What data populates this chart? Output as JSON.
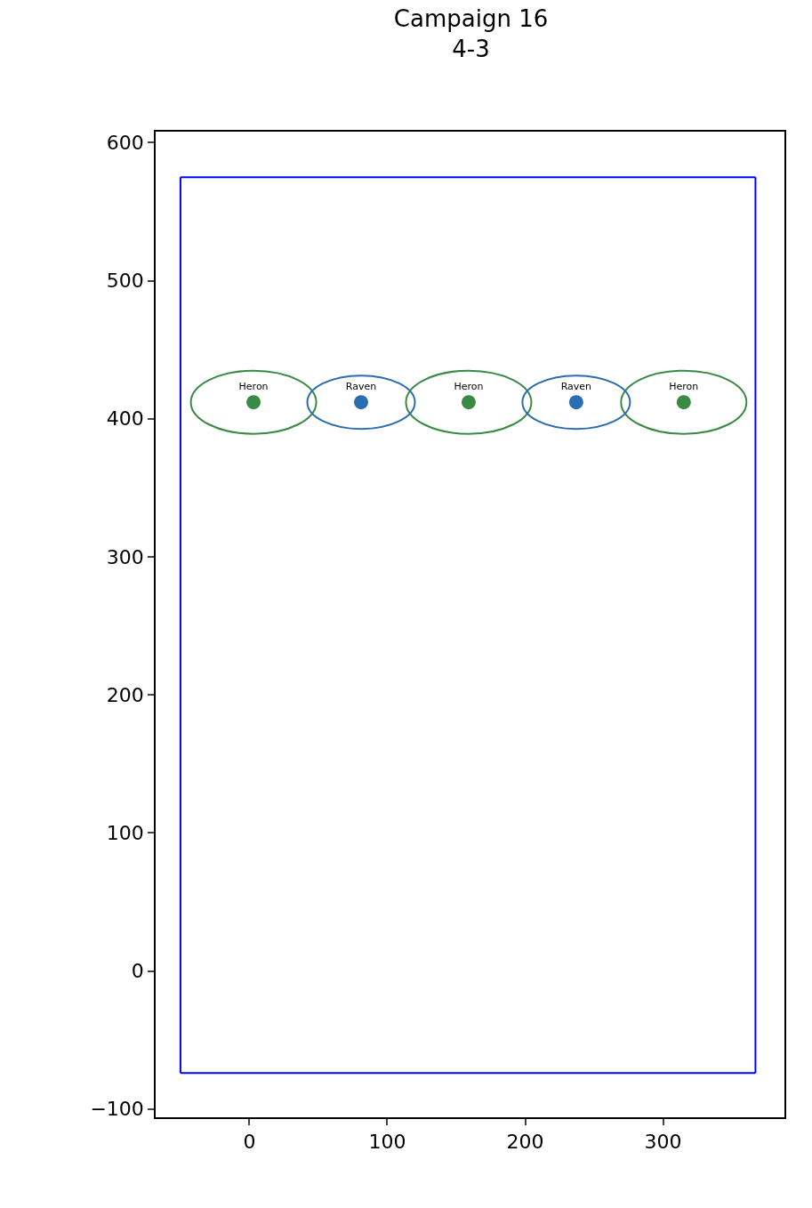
{
  "chart_data": {
    "type": "scatter",
    "title": "Campaign 16\n4-3",
    "series": [
      {
        "name": "Heron",
        "color": "#388a44",
        "x": [
          3,
          159,
          315
        ],
        "values": [
          412,
          412,
          412
        ]
      },
      {
        "name": "Raven",
        "color": "#2b6db3",
        "x": [
          81,
          237
        ],
        "values": [
          412,
          412
        ]
      },
      {
        "type": "line",
        "marker": "none",
        "color": "#0000ff",
        "x": [
          -50,
          367
        ],
        "values": [
          -74,
          -74
        ]
      },
      {
        "type": "line",
        "marker": "none",
        "color": "#0000ff",
        "x": [
          -50,
          367
        ],
        "values": [
          575,
          575
        ]
      },
      {
        "type": "line",
        "marker": "none",
        "color": "#0000ff",
        "x": [
          -50,
          -50
        ],
        "values": [
          -74,
          575
        ]
      },
      {
        "type": "line",
        "marker": "none",
        "color": "#0000ff",
        "x": [
          367,
          367
        ],
        "values": [
          -74,
          575
        ]
      }
    ],
    "xlim": [
      -68,
      388
    ],
    "ylim": [
      -106,
      608
    ],
    "xticks": [
      0,
      100,
      200,
      300
    ],
    "yticks": [
      {
        "value": -100,
        "label": "−100"
      },
      0,
      100,
      200,
      300,
      400,
      500,
      600
    ],
    "grid": false,
    "legend": false,
    "marker": "circle"
  }
}
